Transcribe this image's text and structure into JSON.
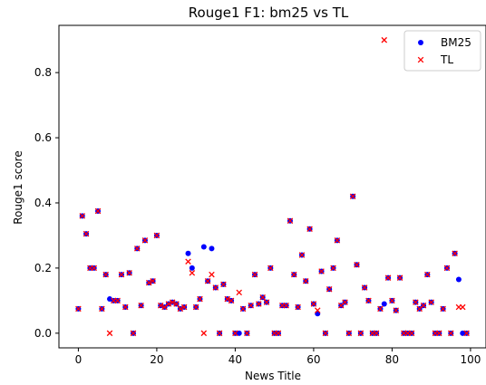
{
  "chart_data": {
    "type": "scatter",
    "title": "Rouge1 F1:  bm25 vs TL",
    "xlabel": "News Title",
    "ylabel": "Rouge1 score",
    "xlim": [
      -4.95,
      103.95
    ],
    "ylim": [
      -0.045,
      0.945
    ],
    "xticks": [
      0,
      20,
      40,
      60,
      80,
      100
    ],
    "xtick_labels": [
      "0",
      "20",
      "40",
      "60",
      "80",
      "100"
    ],
    "yticks": [
      0.0,
      0.2,
      0.4,
      0.6,
      0.8
    ],
    "ytick_labels": [
      "0.0",
      "0.2",
      "0.4",
      "0.6",
      "0.8"
    ],
    "grid": false,
    "legend": "top-right",
    "series": [
      {
        "name": "BM25",
        "marker": "circle",
        "color": "#0000ff",
        "x": [
          0,
          1,
          2,
          3,
          4,
          5,
          6,
          7,
          8,
          9,
          10,
          11,
          12,
          13,
          14,
          15,
          16,
          17,
          18,
          19,
          20,
          21,
          22,
          23,
          24,
          25,
          26,
          27,
          28,
          29,
          30,
          31,
          32,
          33,
          34,
          35,
          36,
          37,
          38,
          39,
          40,
          41,
          42,
          43,
          44,
          45,
          46,
          47,
          48,
          49,
          50,
          51,
          52,
          53,
          54,
          55,
          56,
          57,
          58,
          59,
          60,
          61,
          62,
          63,
          64,
          65,
          66,
          67,
          68,
          69,
          70,
          71,
          72,
          73,
          74,
          75,
          76,
          77,
          78,
          79,
          80,
          81,
          82,
          83,
          84,
          85,
          86,
          87,
          88,
          89,
          90,
          91,
          92,
          93,
          94,
          95,
          96,
          97,
          98,
          99
        ],
        "y": [
          0.075,
          0.36,
          0.305,
          0.2,
          0.2,
          0.375,
          0.075,
          0.18,
          0.105,
          0.1,
          0.1,
          0.18,
          0.08,
          0.185,
          0.0,
          0.26,
          0.085,
          0.285,
          0.155,
          0.16,
          0.3,
          0.085,
          0.08,
          0.09,
          0.095,
          0.09,
          0.075,
          0.08,
          0.245,
          0.2,
          0.08,
          0.105,
          0.265,
          0.16,
          0.26,
          0.14,
          0.0,
          0.15,
          0.105,
          0.1,
          0.0,
          0.0,
          0.075,
          0.0,
          0.085,
          0.18,
          0.09,
          0.11,
          0.095,
          0.2,
          0.0,
          0.0,
          0.085,
          0.085,
          0.345,
          0.18,
          0.08,
          0.24,
          0.16,
          0.32,
          0.09,
          0.06,
          0.19,
          0.0,
          0.135,
          0.2,
          0.285,
          0.085,
          0.095,
          0.0,
          0.42,
          0.21,
          0.0,
          0.14,
          0.1,
          0.0,
          0.0,
          0.075,
          0.09,
          0.17,
          0.1,
          0.07,
          0.17,
          0.0,
          0.0,
          0.0,
          0.095,
          0.075,
          0.085,
          0.18,
          0.095,
          0.0,
          0.0,
          0.075,
          0.2,
          0.0,
          0.245,
          0.165,
          0.0,
          0.0
        ]
      },
      {
        "name": "TL",
        "marker": "x",
        "color": "#ff0000",
        "x": [
          0,
          1,
          2,
          3,
          4,
          5,
          6,
          7,
          8,
          9,
          10,
          11,
          12,
          13,
          14,
          15,
          16,
          17,
          18,
          19,
          20,
          21,
          22,
          23,
          24,
          25,
          26,
          27,
          28,
          29,
          30,
          31,
          32,
          33,
          34,
          35,
          36,
          37,
          38,
          39,
          40,
          41,
          42,
          43,
          44,
          45,
          46,
          47,
          48,
          49,
          50,
          51,
          52,
          53,
          54,
          55,
          56,
          57,
          58,
          59,
          60,
          61,
          62,
          63,
          64,
          65,
          66,
          67,
          68,
          69,
          70,
          71,
          72,
          73,
          74,
          75,
          76,
          77,
          78,
          79,
          80,
          81,
          82,
          83,
          84,
          85,
          86,
          87,
          88,
          89,
          90,
          91,
          92,
          93,
          94,
          95,
          96,
          97,
          98,
          99
        ],
        "y": [
          0.075,
          0.36,
          0.305,
          0.2,
          0.2,
          0.375,
          0.075,
          0.18,
          0.0,
          0.1,
          0.1,
          0.18,
          0.08,
          0.185,
          0.0,
          0.26,
          0.085,
          0.285,
          0.155,
          0.16,
          0.3,
          0.085,
          0.08,
          0.09,
          0.095,
          0.09,
          0.075,
          0.08,
          0.22,
          0.185,
          0.08,
          0.105,
          0.0,
          0.16,
          0.18,
          0.14,
          0.0,
          0.15,
          0.105,
          0.1,
          0.0,
          0.125,
          0.075,
          0.0,
          0.085,
          0.18,
          0.09,
          0.11,
          0.095,
          0.2,
          0.0,
          0.0,
          0.085,
          0.085,
          0.345,
          0.18,
          0.08,
          0.24,
          0.16,
          0.32,
          0.09,
          0.07,
          0.19,
          0.0,
          0.135,
          0.2,
          0.285,
          0.085,
          0.095,
          0.0,
          0.42,
          0.21,
          0.0,
          0.14,
          0.1,
          0.0,
          0.0,
          0.075,
          0.9,
          0.17,
          0.1,
          0.07,
          0.17,
          0.0,
          0.0,
          0.0,
          0.095,
          0.075,
          0.085,
          0.18,
          0.095,
          0.0,
          0.0,
          0.075,
          0.2,
          0.0,
          0.245,
          0.08,
          0.08,
          0.0
        ]
      }
    ]
  }
}
